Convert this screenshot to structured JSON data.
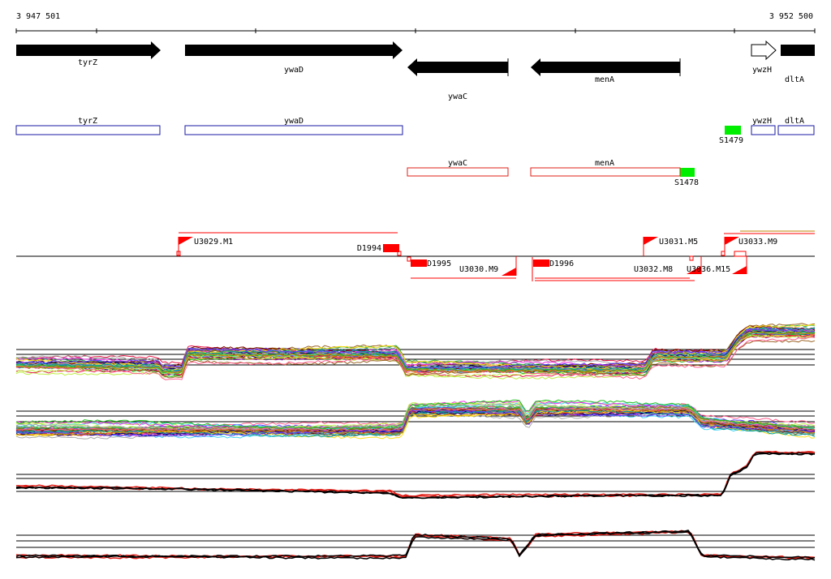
{
  "ruler": {
    "start_label": "3 947 501",
    "end_label": "3 952 500"
  },
  "genes": [
    {
      "label": "tyrZ",
      "strand": "+",
      "filled": true
    },
    {
      "label": "ywaD",
      "strand": "+",
      "filled": true
    },
    {
      "label": "ywaC",
      "strand": "-",
      "filled": true
    },
    {
      "label": "menA",
      "strand": "-",
      "filled": true
    },
    {
      "label": "ywzH",
      "strand": "+",
      "filled": false
    },
    {
      "label": "dltA",
      "strand": "+",
      "filled": true
    }
  ],
  "cds_forward": [
    {
      "label": "tyrZ"
    },
    {
      "label": "ywaD"
    },
    {
      "label": "ywzH"
    },
    {
      "label": "dltA"
    }
  ],
  "cds_reverse": [
    {
      "label": "ywaC"
    },
    {
      "label": "menA"
    }
  ],
  "sites": [
    {
      "label": "S1479",
      "color": "#00ee00"
    },
    {
      "label": "S1478",
      "color": "#00ee00"
    }
  ],
  "segments": [
    {
      "label": "U3029.M1"
    },
    {
      "label": "D1994"
    },
    {
      "label": "D1995"
    },
    {
      "label": "U3030.M9"
    },
    {
      "label": "D1996"
    },
    {
      "label": "U3031.M5"
    },
    {
      "label": "U3032.M8"
    },
    {
      "label": "U3036.M15"
    },
    {
      "label": "U3033.M9"
    }
  ],
  "colors": {
    "gene": "#000000",
    "cds_forward": "#1a1aa6",
    "cds_reverse": "#e0201a",
    "segment": "#ff0000",
    "trace_highlight": "#e0201a"
  },
  "trace_palette": [
    "#e6194b",
    "#3cb44b",
    "#4363d8",
    "#f58231",
    "#911eb4",
    "#42d4f4",
    "#f032e6",
    "#bfef45",
    "#469990",
    "#9a6324",
    "#800000",
    "#808000",
    "#000075",
    "#a9a9a9",
    "#ffe119",
    "#00a0a0",
    "#ff6090",
    "#6040ff",
    "#20c020",
    "#c08000"
  ]
}
